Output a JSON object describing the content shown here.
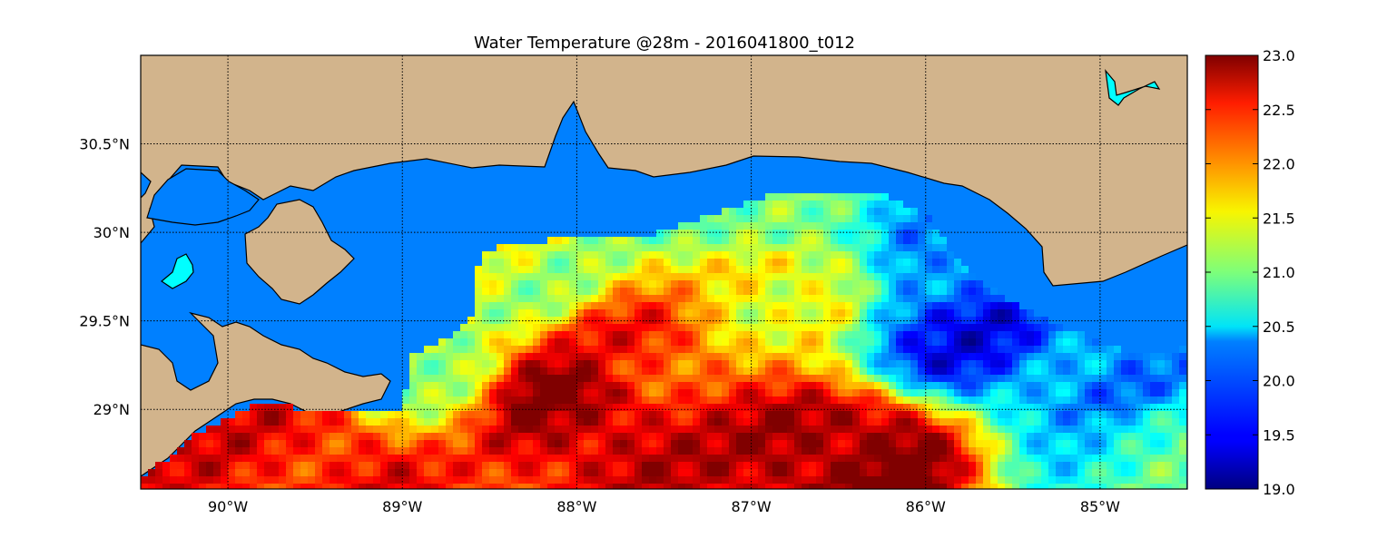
{
  "title": "Water Temperature @28m - 2016041800_t012",
  "map": {
    "lon_range": [
      -90.5,
      -84.5
    ],
    "lat_range": [
      28.55,
      31.0
    ],
    "lon_ticks": [
      {
        "value": -90,
        "label": "90°W"
      },
      {
        "value": -89,
        "label": "89°W"
      },
      {
        "value": -88,
        "label": "88°W"
      },
      {
        "value": -87,
        "label": "87°W"
      },
      {
        "value": -86,
        "label": "86°W"
      },
      {
        "value": -85,
        "label": "85°W"
      }
    ],
    "lat_ticks": [
      {
        "value": 29.0,
        "label": "29°N"
      },
      {
        "value": 29.5,
        "label": "29.5°N"
      },
      {
        "value": 30.0,
        "label": "30°N"
      },
      {
        "value": 30.5,
        "label": "30.5°N"
      }
    ],
    "colors": {
      "land": "#d2b48c",
      "water_masked": "#0080ff",
      "lakes": "#00ffff",
      "grid": "#000000"
    }
  },
  "colorbar": {
    "min": 19.0,
    "max": 23.0,
    "colormap": "jet",
    "ticks": [
      {
        "value": 19.0,
        "label": "19.0"
      },
      {
        "value": 19.5,
        "label": "19.5"
      },
      {
        "value": 20.0,
        "label": "20.0"
      },
      {
        "value": 20.5,
        "label": "20.5"
      },
      {
        "value": 21.0,
        "label": "21.0"
      },
      {
        "value": 21.5,
        "label": "21.5"
      },
      {
        "value": 22.0,
        "label": "22.0"
      },
      {
        "value": 22.5,
        "label": "22.5"
      },
      {
        "value": 23.0,
        "label": "23.0"
      }
    ]
  },
  "chart_data": {
    "type": "heatmap",
    "title": "Water Temperature @28m - 2016041800_t012",
    "xlabel": "",
    "ylabel": "",
    "xlim": [
      -90.5,
      -84.5
    ],
    "ylim": [
      28.55,
      31.0
    ],
    "value_range": [
      19.0,
      23.0
    ],
    "grid": true,
    "regions": [
      {
        "lon": -86.4,
        "lat": 28.75,
        "value": 23.0
      },
      {
        "lon": -88.0,
        "lat": 29.05,
        "value": 22.9
      },
      {
        "lon": -87.7,
        "lat": 29.3,
        "value": 22.3
      },
      {
        "lon": -89.5,
        "lat": 28.75,
        "value": 22.5
      },
      {
        "lon": -88.3,
        "lat": 29.75,
        "value": 21.3
      },
      {
        "lon": -86.8,
        "lat": 29.7,
        "value": 21.6
      },
      {
        "lon": -87.0,
        "lat": 30.1,
        "value": 20.8
      },
      {
        "lon": -85.75,
        "lat": 29.75,
        "value": 19.9
      },
      {
        "lon": -85.8,
        "lat": 29.45,
        "value": 19.6
      },
      {
        "lon": -85.0,
        "lat": 29.15,
        "value": 20.0
      },
      {
        "lon": -84.7,
        "lat": 28.85,
        "value": 20.7
      },
      {
        "lon": -88.9,
        "lat": 29.2,
        "value": 21.3
      }
    ]
  }
}
